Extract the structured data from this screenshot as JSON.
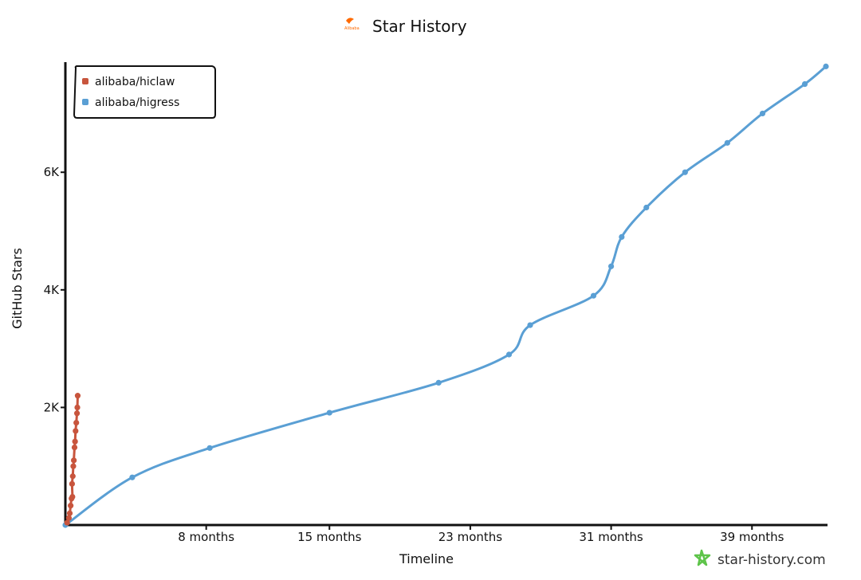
{
  "chart_data": {
    "type": "line",
    "title": "Star History",
    "xlabel": "Timeline",
    "ylabel": "GitHub Stars",
    "xlim_months": [
      0,
      43.2
    ],
    "ylim": [
      0,
      7900
    ],
    "x_ticks": [
      {
        "value": 8,
        "label": "8 months"
      },
      {
        "value": 15,
        "label": "15 months"
      },
      {
        "value": 23,
        "label": "23 months"
      },
      {
        "value": 31,
        "label": "31 months"
      },
      {
        "value": 39,
        "label": "39 months"
      }
    ],
    "y_ticks": [
      {
        "value": 2000,
        "label": "2K"
      },
      {
        "value": 4000,
        "label": "4K"
      },
      {
        "value": 6000,
        "label": "6K"
      }
    ],
    "legend_position": "top-left",
    "grid": false,
    "series": [
      {
        "name": "alibaba/hiclaw",
        "color": "#c8553d",
        "points": [
          {
            "x": 0.1,
            "y": 40
          },
          {
            "x": 0.2,
            "y": 120
          },
          {
            "x": 0.25,
            "y": 200
          },
          {
            "x": 0.3,
            "y": 330
          },
          {
            "x": 0.35,
            "y": 450
          },
          {
            "x": 0.4,
            "y": 480
          },
          {
            "x": 0.38,
            "y": 700
          },
          {
            "x": 0.42,
            "y": 830
          },
          {
            "x": 0.45,
            "y": 1000
          },
          {
            "x": 0.48,
            "y": 1100
          },
          {
            "x": 0.52,
            "y": 1320
          },
          {
            "x": 0.55,
            "y": 1420
          },
          {
            "x": 0.58,
            "y": 1600
          },
          {
            "x": 0.62,
            "y": 1740
          },
          {
            "x": 0.66,
            "y": 1900
          },
          {
            "x": 0.68,
            "y": 2000
          },
          {
            "x": 0.7,
            "y": 2200
          }
        ]
      },
      {
        "name": "alibaba/higress",
        "color": "#5a9fd4",
        "points": [
          {
            "x": 0.0,
            "y": 0
          },
          {
            "x": 3.8,
            "y": 810
          },
          {
            "x": 8.2,
            "y": 1310
          },
          {
            "x": 15.0,
            "y": 1910
          },
          {
            "x": 21.2,
            "y": 2420
          },
          {
            "x": 25.2,
            "y": 2900
          },
          {
            "x": 26.4,
            "y": 3400
          },
          {
            "x": 30.0,
            "y": 3900
          },
          {
            "x": 31.0,
            "y": 4400
          },
          {
            "x": 31.6,
            "y": 4900
          },
          {
            "x": 33.0,
            "y": 5400
          },
          {
            "x": 35.2,
            "y": 6000
          },
          {
            "x": 37.6,
            "y": 6500
          },
          {
            "x": 39.6,
            "y": 7000
          },
          {
            "x": 42.0,
            "y": 7500
          },
          {
            "x": 43.2,
            "y": 7800
          }
        ]
      }
    ]
  },
  "branding": {
    "logo_text": "Alibaba",
    "watermark": "star-history.com",
    "logo_color": "#ff6a00",
    "watermark_icon_color": "#5ec44a"
  }
}
